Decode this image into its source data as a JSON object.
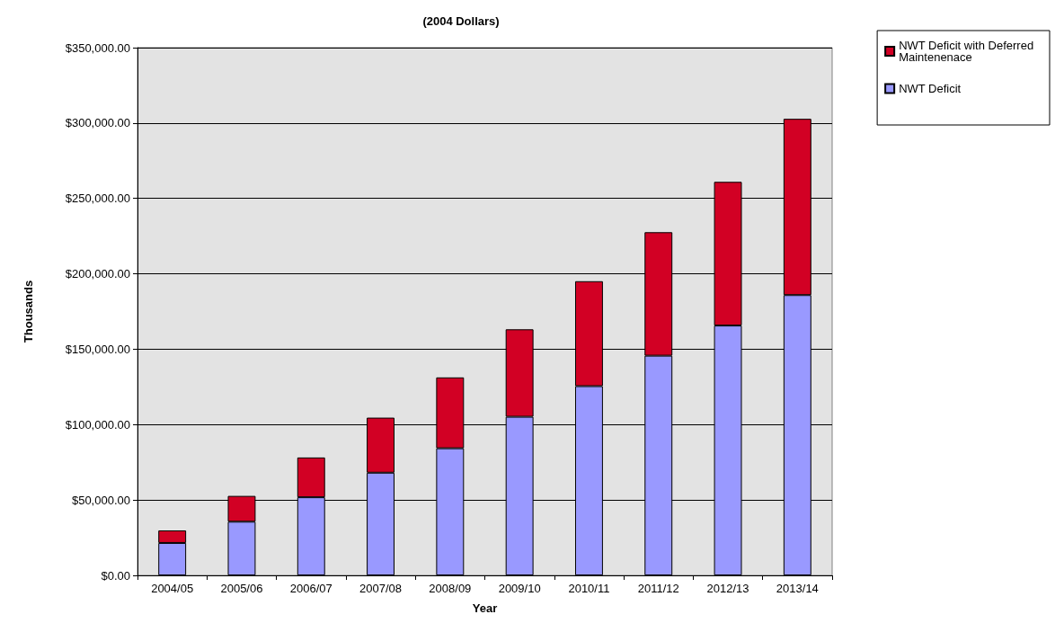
{
  "chart_data": {
    "type": "bar",
    "title": "(2004 Dollars)",
    "xlabel": "Year",
    "ylabel": "Thousands",
    "categories": [
      "2004/05",
      "2005/06",
      "2006/07",
      "2007/08",
      "2008/09",
      "2009/10",
      "2010/11",
      "2011/12",
      "2012/13",
      "2013/14"
    ],
    "series": [
      {
        "name": "NWT Deficit",
        "color": "#9999ff",
        "values": [
          21500,
          35600,
          51800,
          68100,
          84300,
          105200,
          125500,
          145700,
          165700,
          185900
        ]
      },
      {
        "name": "NWT Deficit with Deferred Maintenenace",
        "color": "#d20024",
        "values": [
          8300,
          17100,
          26400,
          36500,
          47000,
          58000,
          69600,
          81900,
          95300,
          116900
        ]
      }
    ],
    "stacked": true,
    "ylim": [
      0,
      350000
    ],
    "yticks": [
      {
        "value": 0,
        "label": "$0.00"
      },
      {
        "value": 50000,
        "label": "$50,000.00"
      },
      {
        "value": 100000,
        "label": "$100,000.00"
      },
      {
        "value": 150000,
        "label": "$150,000.00"
      },
      {
        "value": 200000,
        "label": "$200,000.00"
      },
      {
        "value": 250000,
        "label": "$250,000.00"
      },
      {
        "value": 300000,
        "label": "$300,000.00"
      },
      {
        "value": 350000,
        "label": "$350,000.00"
      }
    ],
    "grid": "y",
    "legend": "top right"
  }
}
